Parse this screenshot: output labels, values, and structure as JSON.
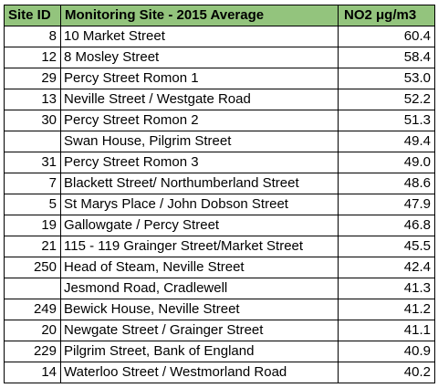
{
  "table": {
    "headers": {
      "site_id": "Site ID",
      "site": "Monitoring Site - 2015 Average",
      "value": "NO2 μg/m3"
    },
    "header_color": "#93c47d",
    "rows": [
      {
        "id": "8",
        "site": "10 Market Street",
        "value": "60.4"
      },
      {
        "id": "12",
        "site": "8 Mosley Street",
        "value": "58.4"
      },
      {
        "id": "29",
        "site": "Percy Street Romon 1",
        "value": "53.0"
      },
      {
        "id": "13",
        "site": "Neville Street / Westgate Road",
        "value": "52.2"
      },
      {
        "id": "30",
        "site": "Percy Street Romon 2",
        "value": "51.3"
      },
      {
        "id": "",
        "site": "Swan House, Pilgrim Street",
        "value": "49.4"
      },
      {
        "id": "31",
        "site": "Percy Street Romon 3",
        "value": "49.0"
      },
      {
        "id": "7",
        "site": "Blackett Street/ Northumberland Street",
        "value": "48.6"
      },
      {
        "id": "5",
        "site": "St Marys Place / John Dobson Street",
        "value": "47.9"
      },
      {
        "id": "19",
        "site": "Gallowgate / Percy Street",
        "value": "46.8"
      },
      {
        "id": "21",
        "site": "115 - 119 Grainger Street/Market Street",
        "value": "45.5"
      },
      {
        "id": "250",
        "site": "Head of Steam, Neville Street",
        "value": "42.4"
      },
      {
        "id": "",
        "site": "Jesmond Road, Cradlewell",
        "value": "41.3"
      },
      {
        "id": "249",
        "site": "Bewick House, Neville Street",
        "value": "41.2"
      },
      {
        "id": "20",
        "site": "Newgate Street / Grainger Street",
        "value": "41.1"
      },
      {
        "id": "229",
        "site": "Pilgrim Street, Bank of England",
        "value": "40.9"
      },
      {
        "id": "14",
        "site": "Waterloo Street / Westmorland Road",
        "value": "40.2"
      }
    ]
  }
}
